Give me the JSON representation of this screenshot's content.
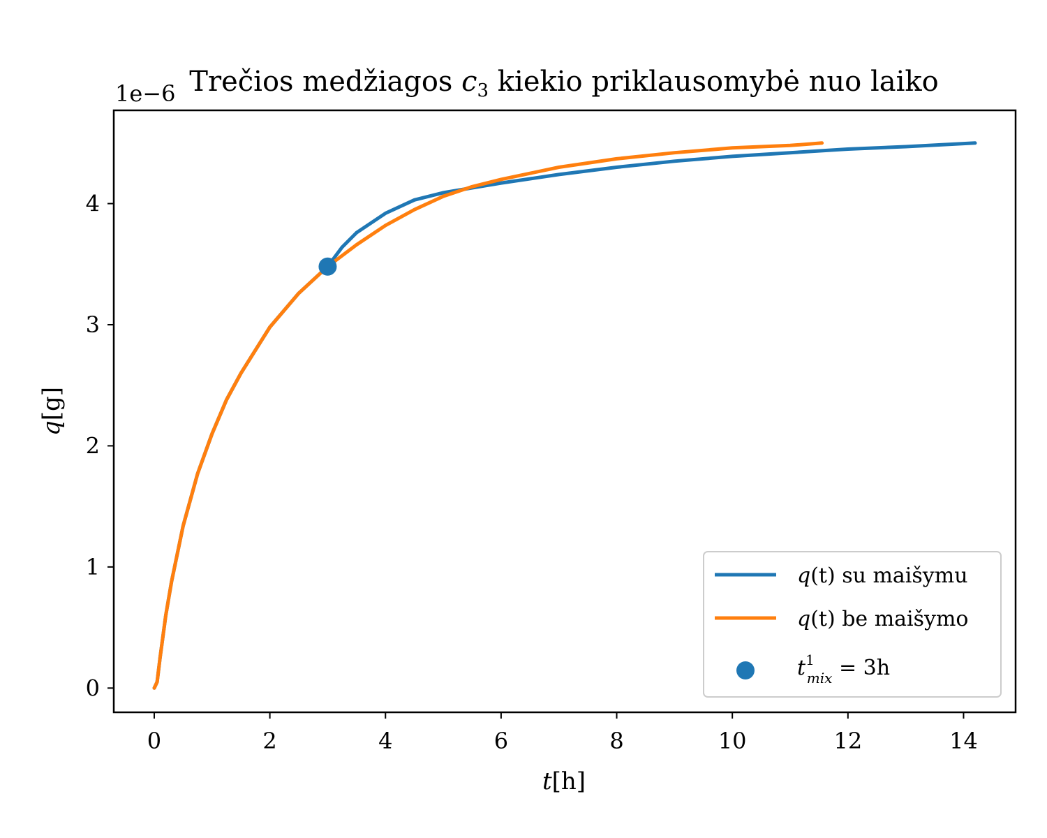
{
  "chart_data": {
    "type": "line",
    "title": {
      "pre": "Trečios medžiagos ",
      "var": "c",
      "sub": "3",
      "post": " kiekio priklausomybė nuo laiko"
    },
    "offset_label": "1e−6",
    "xlabel": {
      "var": "t",
      "unit": "[h]"
    },
    "ylabel": {
      "var": "q",
      "unit": "[g]"
    },
    "xlim": [
      -0.7,
      14.9
    ],
    "ylim": [
      -0.2,
      4.77
    ],
    "x_ticks": [
      0,
      2,
      4,
      6,
      8,
      10,
      12,
      14
    ],
    "y_ticks": [
      0,
      1,
      2,
      3,
      4
    ],
    "legend_position": "lower-right",
    "series": [
      {
        "name": "q(t) su maišymu",
        "legend": {
          "var": "q",
          "arg": "(t)",
          "text": " su maišymu"
        },
        "color": "#1f77b4",
        "x": [
          0,
          0.05,
          0.1,
          0.2,
          0.3,
          0.5,
          0.75,
          1,
          1.25,
          1.5,
          2,
          2.5,
          3,
          3.25,
          3.5,
          4,
          4.5,
          5,
          5.5,
          6,
          7,
          8,
          9,
          10,
          11,
          12,
          13,
          14.2
        ],
        "y": [
          0,
          0.05,
          0.25,
          0.6,
          0.88,
          1.34,
          1.77,
          2.1,
          2.38,
          2.6,
          2.98,
          3.26,
          3.48,
          3.64,
          3.76,
          3.92,
          4.03,
          4.09,
          4.13,
          4.17,
          4.24,
          4.3,
          4.35,
          4.39,
          4.42,
          4.45,
          4.47,
          4.5
        ]
      },
      {
        "name": "q(t) be maišymo",
        "legend": {
          "var": "q",
          "arg": "(t)",
          "text": " be maišymo"
        },
        "color": "#ff7f0e",
        "x": [
          0,
          0.05,
          0.1,
          0.2,
          0.3,
          0.5,
          0.75,
          1,
          1.25,
          1.5,
          2,
          2.5,
          3,
          3.5,
          4,
          4.5,
          5,
          5.5,
          6,
          7,
          8,
          9,
          10,
          11,
          11.55
        ],
        "y": [
          0,
          0.05,
          0.25,
          0.6,
          0.88,
          1.34,
          1.77,
          2.1,
          2.38,
          2.6,
          2.98,
          3.26,
          3.48,
          3.66,
          3.82,
          3.95,
          4.06,
          4.14,
          4.2,
          4.3,
          4.37,
          4.42,
          4.46,
          4.48,
          4.5
        ]
      }
    ],
    "markers": [
      {
        "name": "t_mix^1 = 3h",
        "legend": {
          "var": "t",
          "sup": "1",
          "sub": "mix",
          "text": " = 3h"
        },
        "color": "#1f77b4",
        "x": 3,
        "y": 3.48
      }
    ]
  }
}
